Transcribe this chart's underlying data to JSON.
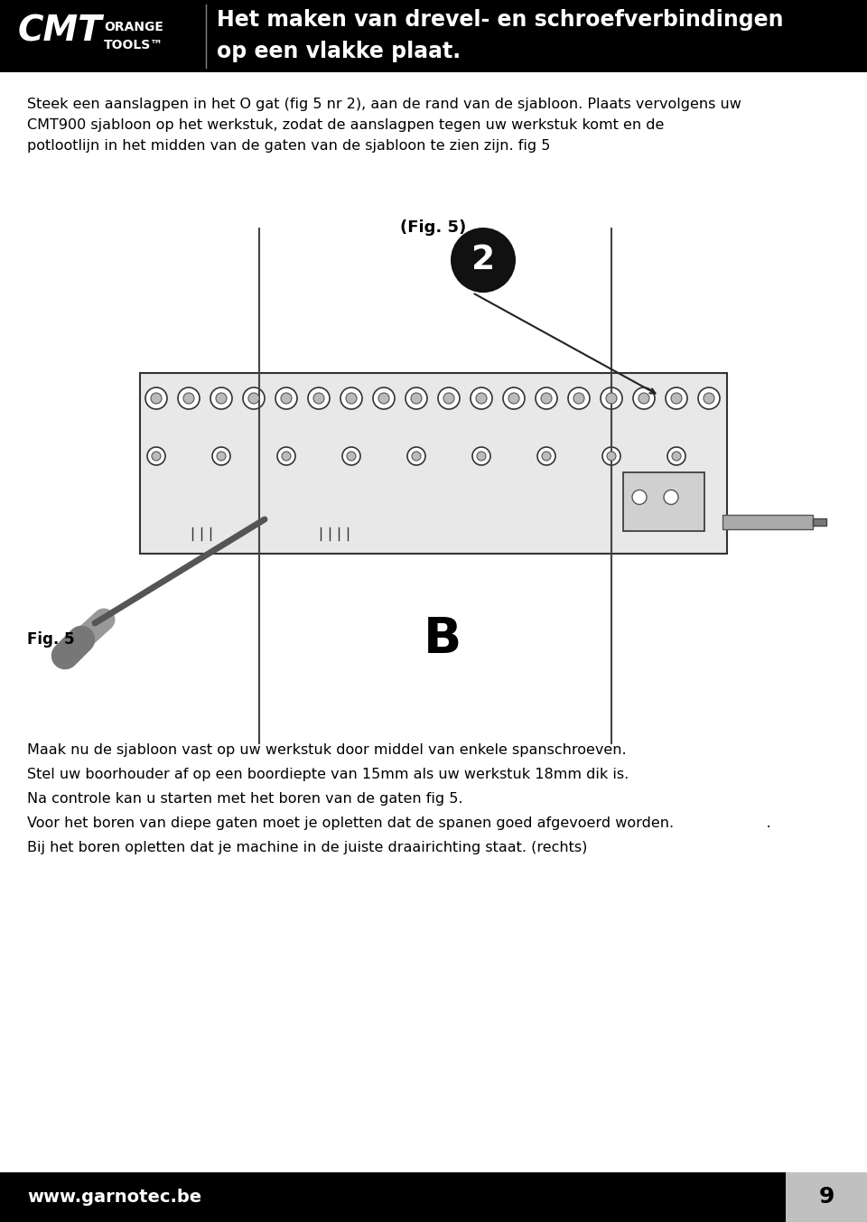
{
  "header_bg": "#000000",
  "header_text_color": "#ffffff",
  "header_title_line1": "Het maken van drevel- en schroefverbindingen",
  "header_title_line2": "op een vlakke plaat.",
  "logo_text": "CMT",
  "logo_sub": "ORANGE\nTOOLS™",
  "body_bg": "#ffffff",
  "body_text_color": "#000000",
  "intro_text": "Steek een aanslagpen in het O gat (fig 5 nr 2), aan de rand van de sjabloon. Plaats vervolgens uw\nCMT900 sjabloon op het werkstuk, zodat de aanslagpen tegen uw werkstuk komt en de\npotlootlijn in het midden van de gaten van de sjabloon te zien zijn. fig 5",
  "fig_label": "(Fig. 5)",
  "fig5_label": "Fig. 5",
  "label_B": "B",
  "label_2": "2",
  "bottom_text_line1": "Maak nu de sjabloon vast op uw werkstuk door middel van enkele spanschroeven.",
  "bottom_text_line2": "Stel uw boorhouder af op een boordiepte van 15mm als uw werkstuk 18mm dik is.",
  "bottom_text_line3": "Na controle kan u starten met het boren van de gaten fig 5.",
  "bottom_text_line4": "Voor het boren van diepe gaten moet je opletten dat de spanen goed afgevoerd worden.                    .",
  "bottom_text_line5": "Bij het boren opletten dat je machine in de juiste draairichting staat. (rechts)",
  "footer_bg": "#000000",
  "footer_text": "www.garnotec.be",
  "footer_text_color": "#ffffff",
  "page_number": "9",
  "page_number_bg": "#c0c0c0",
  "page_number_color": "#000000"
}
